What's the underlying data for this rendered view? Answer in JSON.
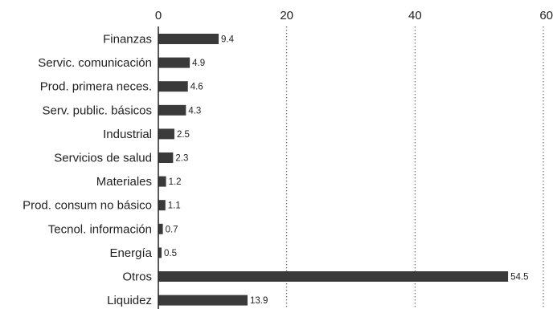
{
  "chart_data": {
    "type": "bar",
    "orientation": "horizontal",
    "categories": [
      "Finanzas",
      "Servic. comunicación",
      "Prod. primera neces.",
      "Serv. public. básicos",
      "Industrial",
      "Servicios de salud",
      "Materiales",
      "Prod. consum no básico",
      "Tecnol. información",
      "Energía",
      "Otros",
      "Liquidez"
    ],
    "values": [
      9.4,
      4.9,
      4.6,
      4.3,
      2.5,
      2.3,
      1.2,
      1.1,
      0.7,
      0.5,
      54.5,
      13.9
    ],
    "value_labels": [
      "9.4",
      "4.9",
      "4.6",
      "4.3",
      "2.5",
      "2.3",
      "1.2",
      "1.1",
      "0.7",
      "0.5",
      "54.5",
      "13.9"
    ],
    "xlim": [
      0,
      60
    ],
    "xticks": [
      "0",
      "20",
      "40",
      "60"
    ],
    "grid": "vertical dotted",
    "axis_position": "top",
    "bar_color": "#3a3a3a"
  }
}
